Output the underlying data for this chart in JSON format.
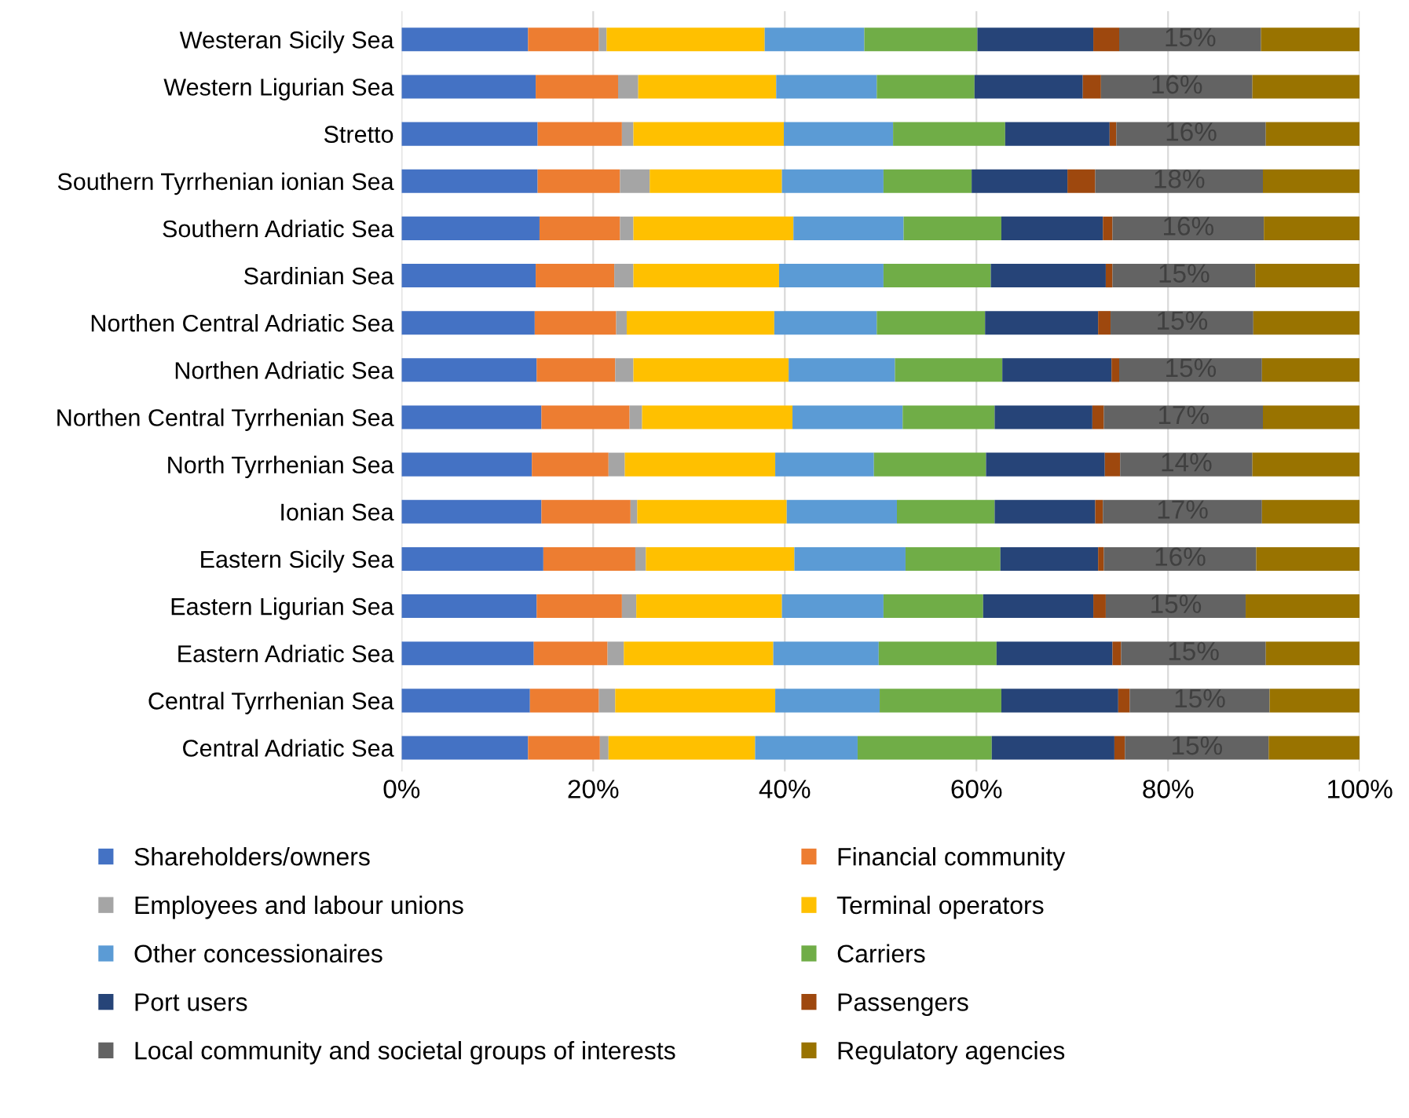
{
  "chart_data": {
    "type": "bar",
    "orientation": "horizontal",
    "stacked": true,
    "categories": [
      "Westeran Sicily Sea",
      "Western Ligurian Sea",
      "Stretto",
      "Southern Tyrrhenian ionian Sea",
      "Southern Adriatic Sea",
      "Sardinian Sea",
      "Northen Central Adriatic Sea",
      "Northen Adriatic Sea",
      "Northen Central Tyrrhenian Sea",
      "North Tyrrhenian Sea",
      "Ionian Sea",
      "Eastern Sicily Sea",
      "Eastern Ligurian Sea",
      "Eastern Adriatic Sea",
      "Central Tyrrhenian Sea",
      "Central Adriatic Sea"
    ],
    "xlim": [
      0,
      100
    ],
    "xticks": [
      {
        "value": 0,
        "label": "0%"
      },
      {
        "value": 20,
        "label": "20%"
      },
      {
        "value": 40,
        "label": "40%"
      },
      {
        "value": 60,
        "label": "60%"
      },
      {
        "value": 80,
        "label": "80%"
      },
      {
        "value": 100,
        "label": "100%"
      }
    ],
    "grid": "x",
    "legend": "bottom",
    "series": [
      {
        "name": "Shareholders/owners",
        "color": "#4472c4",
        "values": [
          13.2,
          14.0,
          14.2,
          14.2,
          14.4,
          14.0,
          13.9,
          14.1,
          14.6,
          13.6,
          14.6,
          14.8,
          14.1,
          13.8,
          13.4,
          13.2
        ]
      },
      {
        "name": "Financial community",
        "color": "#ed7d31",
        "values": [
          7.4,
          8.6,
          8.8,
          8.6,
          8.4,
          8.2,
          8.5,
          8.2,
          9.2,
          8.0,
          9.3,
          9.6,
          8.9,
          7.7,
          7.2,
          7.5
        ]
      },
      {
        "name": "Employees and labour unions",
        "color": "#a5a5a5",
        "values": [
          0.8,
          2.1,
          1.2,
          3.1,
          1.4,
          2.0,
          1.1,
          1.9,
          1.3,
          1.7,
          0.7,
          1.1,
          1.5,
          1.7,
          1.7,
          0.9
        ]
      },
      {
        "name": "Terminal operators",
        "color": "#ffc000",
        "values": [
          16.5,
          14.4,
          15.7,
          13.8,
          16.7,
          15.2,
          15.4,
          16.2,
          15.7,
          15.7,
          15.6,
          15.5,
          15.2,
          15.6,
          16.7,
          15.3
        ]
      },
      {
        "name": "Other concessionaires",
        "color": "#5b9bd5",
        "values": [
          10.4,
          10.5,
          11.4,
          10.6,
          11.5,
          10.9,
          10.7,
          11.1,
          11.5,
          10.3,
          11.5,
          11.6,
          10.6,
          11.0,
          10.9,
          10.7
        ]
      },
      {
        "name": "Carriers",
        "color": "#70ad47",
        "values": [
          11.8,
          10.2,
          11.7,
          9.2,
          10.2,
          11.2,
          11.3,
          11.2,
          9.6,
          11.7,
          10.2,
          9.9,
          10.4,
          12.3,
          12.7,
          14.0
        ]
      },
      {
        "name": "Port users",
        "color": "#264478",
        "values": [
          12.1,
          11.3,
          10.9,
          10.0,
          10.6,
          12.0,
          11.8,
          11.4,
          10.2,
          12.4,
          10.5,
          10.2,
          11.5,
          12.1,
          12.2,
          12.8
        ]
      },
      {
        "name": "Passengers",
        "color": "#9e480e",
        "values": [
          2.7,
          1.9,
          0.7,
          2.9,
          1.0,
          0.7,
          1.3,
          0.8,
          1.2,
          1.6,
          0.8,
          0.6,
          1.3,
          0.9,
          1.2,
          1.1
        ]
      },
      {
        "name": "Local community and societal groups of interests",
        "color": "#636363",
        "values": [
          14.8,
          15.8,
          15.6,
          17.5,
          15.8,
          14.9,
          14.9,
          14.9,
          16.6,
          13.8,
          16.6,
          15.9,
          14.6,
          15.1,
          14.6,
          15.0
        ],
        "value_labels": [
          "15%",
          "16%",
          "16%",
          "18%",
          "16%",
          "15%",
          "15%",
          "15%",
          "17%",
          "14%",
          "17%",
          "16%",
          "15%",
          "15%",
          "15%",
          "15%"
        ]
      },
      {
        "name": "Regulatory agencies",
        "color": "#997300",
        "values": [
          10.3,
          11.2,
          9.8,
          10.1,
          10.0,
          10.9,
          11.1,
          10.2,
          10.1,
          11.2,
          10.2,
          10.8,
          11.9,
          9.8,
          9.4,
          9.5
        ]
      }
    ]
  }
}
